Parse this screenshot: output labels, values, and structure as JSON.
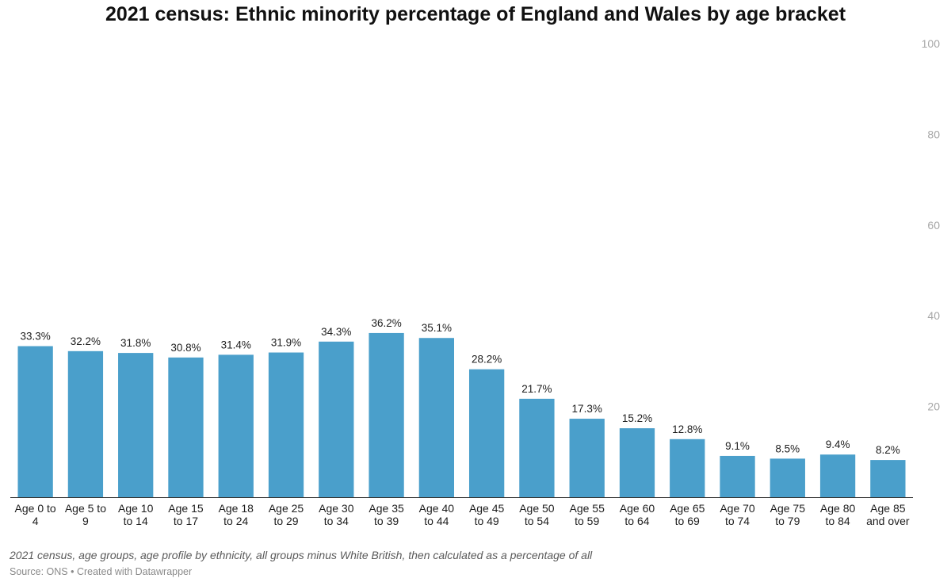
{
  "chart_data": {
    "type": "bar",
    "title": "2021 census: Ethnic minority percentage of England and Wales by age bracket",
    "categories": [
      [
        "Age 0 to",
        "4"
      ],
      [
        "Age 5 to",
        "9"
      ],
      [
        "Age 10",
        "to 14"
      ],
      [
        "Age 15",
        "to 17"
      ],
      [
        "Age 18",
        "to 24"
      ],
      [
        "Age 25",
        "to 29"
      ],
      [
        "Age 30",
        "to 34"
      ],
      [
        "Age 35",
        "to 39"
      ],
      [
        "Age 40",
        "to 44"
      ],
      [
        "Age 45",
        "to 49"
      ],
      [
        "Age 50",
        "to 54"
      ],
      [
        "Age 55",
        "to 59"
      ],
      [
        "Age 60",
        "to 64"
      ],
      [
        "Age 65",
        "to 69"
      ],
      [
        "Age 70",
        "to 74"
      ],
      [
        "Age 75",
        "to 79"
      ],
      [
        "Age 80",
        "to 84"
      ],
      [
        "Age 85",
        "and over"
      ]
    ],
    "values": [
      33.3,
      32.2,
      31.8,
      30.8,
      31.4,
      31.9,
      34.3,
      36.2,
      35.1,
      28.2,
      21.7,
      17.3,
      15.2,
      12.8,
      9.1,
      8.5,
      9.4,
      8.2
    ],
    "value_labels": [
      "33.3%",
      "32.2%",
      "31.8%",
      "30.8%",
      "31.4%",
      "31.9%",
      "34.3%",
      "36.2%",
      "35.1%",
      "28.2%",
      "21.7%",
      "17.3%",
      "15.2%",
      "12.8%",
      "9.1%",
      "8.5%",
      "9.4%",
      "8.2%"
    ],
    "ylim": [
      0,
      100
    ],
    "y_ticks": [
      "20",
      "40",
      "60",
      "80",
      "100"
    ],
    "y_tick_values": [
      20,
      40,
      60,
      80,
      100
    ],
    "ylabel_position": "right",
    "bar_color": "#4a9fcb",
    "grid": false
  },
  "footer": {
    "note": "2021 census, age groups, age profile by ethnicity, all groups minus White British, then calculated as a percentage of all",
    "source": "Source: ONS • Created with Datawrapper"
  }
}
